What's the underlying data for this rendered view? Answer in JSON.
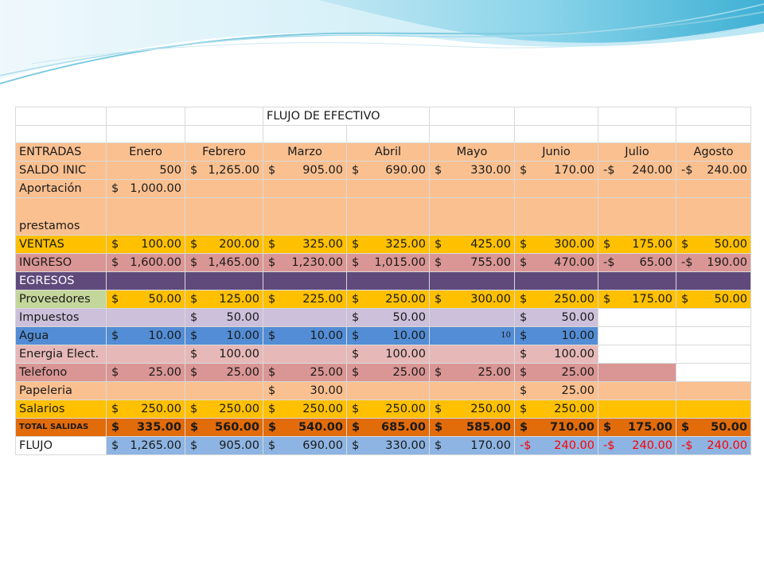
{
  "title": "FLUJO DE EFECTIVO",
  "months": [
    "Enero",
    "Febrero",
    "Marzo",
    "Abril",
    "Mayo",
    "Junio",
    "Julio",
    "Agosto"
  ],
  "rows": {
    "entradas": {
      "label": "ENTRADAS"
    },
    "saldo": {
      "label": "SALDO INIC",
      "cells": [
        "500",
        "$ 1,265.00",
        "$ 905.00",
        "$ 690.00",
        "$ 330.00",
        "$ 170.00",
        "-$ 240.00",
        "-$ 240.00"
      ]
    },
    "aportacion": {
      "label": "Aportación",
      "cells": [
        "$ 1,000.00",
        "",
        "",
        "",
        "",
        "",
        "",
        ""
      ]
    },
    "prestamos": {
      "label": "prestamos"
    },
    "ventas": {
      "label": "VENTAS",
      "cells": [
        "$ 100.00",
        "$ 200.00",
        "$ 325.00",
        "$ 325.00",
        "$ 425.00",
        "$ 300.00",
        "$ 175.00",
        "$ 50.00"
      ]
    },
    "ingreso": {
      "label": "INGRESO",
      "cells": [
        "$ 1,600.00",
        "$ 1,465.00",
        "$ 1,230.00",
        "$ 1,015.00",
        "$ 755.00",
        "$ 470.00",
        "-$ 65.00",
        "-$ 190.00"
      ]
    },
    "egresos": {
      "label": "EGRESOS"
    },
    "proveedores": {
      "label": "Proveedores",
      "cells": [
        "$ 50.00",
        "$ 125.00",
        "$ 225.00",
        "$ 250.00",
        "$ 300.00",
        "$ 250.00",
        "$ 175.00",
        "$ 50.00"
      ]
    },
    "impuestos": {
      "label": "Impuestos",
      "cells": [
        "",
        "$ 50.00",
        "",
        "$ 50.00",
        "",
        "$ 50.00",
        "",
        ""
      ]
    },
    "agua": {
      "label": "Agua",
      "cells": [
        "$ 10.00",
        "$ 10.00",
        "$ 10.00",
        "$ 10.00",
        "10",
        "$ 10.00",
        "",
        ""
      ]
    },
    "energia": {
      "label": "Energia Elect.",
      "cells": [
        "",
        "$ 100.00",
        "",
        "$ 100.00",
        "",
        "$ 100.00",
        "",
        ""
      ]
    },
    "telefono": {
      "label": "Telefono",
      "cells": [
        "$ 25.00",
        "$ 25.00",
        "$ 25.00",
        "$ 25.00",
        "$ 25.00",
        "$ 25.00",
        "",
        ""
      ]
    },
    "papeleria": {
      "label": "Papeleria",
      "cells": [
        "",
        "",
        "$ 30.00",
        "",
        "",
        "$ 25.00",
        "",
        ""
      ]
    },
    "salarios": {
      "label": "Salarios",
      "cells": [
        "$ 250.00",
        "$ 250.00",
        "$ 250.00",
        "$ 250.00",
        "$ 250.00",
        "$ 250.00",
        "",
        ""
      ]
    },
    "total": {
      "label": "TOTAL SALIDAS",
      "cells": [
        "$ 335.00",
        "$ 560.00",
        "$ 540.00",
        "$ 685.00",
        "$ 585.00",
        "$ 710.00",
        "$ 175.00",
        "$ 50.00"
      ]
    },
    "flujo": {
      "label": "FLUJO",
      "cells": [
        "$ 1,265.00",
        "$ 905.00",
        "$ 690.00",
        "$ 330.00",
        "$ 170.00",
        "-$ 240.00",
        "-$ 240.00",
        "-$ 240.00"
      ]
    }
  },
  "colors": {
    "peach": "#fac090",
    "gold": "#ffc000",
    "rose": "#da9694",
    "purple": "#604a7b",
    "green": "#c4d79b",
    "lavender": "#ccc0da",
    "blue": "#538dd5",
    "pink": "#e6b8b7",
    "orange": "#e26b0a",
    "lightblue": "#8db4e2",
    "negative": "#ff0000"
  }
}
